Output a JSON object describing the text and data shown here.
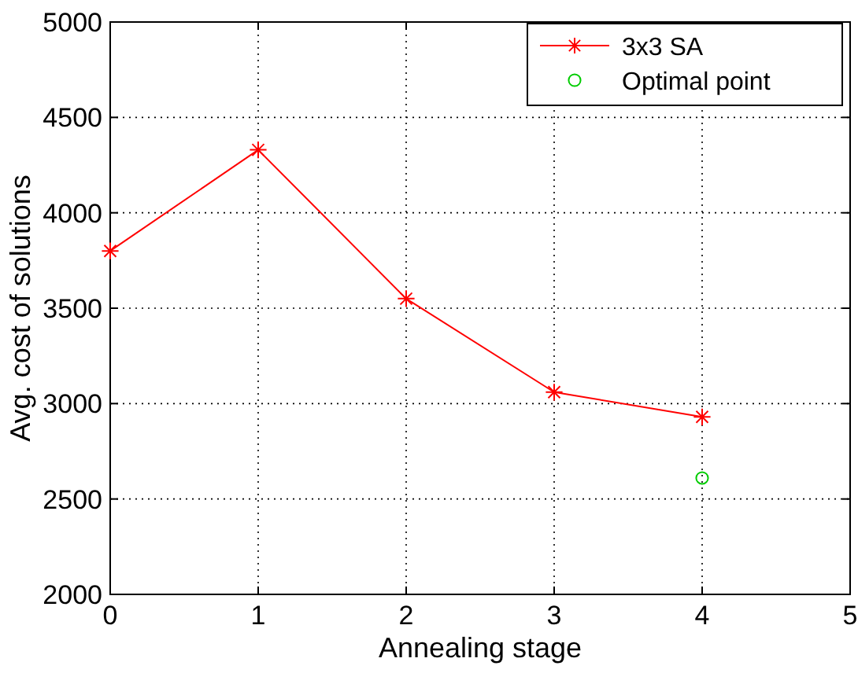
{
  "chart_data": {
    "type": "line",
    "xlabel": "Annealing stage",
    "ylabel": "Avg. cost of solutions",
    "xlim": [
      0,
      5
    ],
    "xticks": [
      0,
      1,
      2,
      3,
      4,
      5
    ],
    "ylim": [
      2000,
      5000
    ],
    "yticks": [
      2000,
      2500,
      3000,
      3500,
      4000,
      4500,
      5000
    ],
    "grid": true,
    "legend": "top right",
    "series": [
      {
        "name": "3x3 SA",
        "type": "line",
        "color": "#ff0000",
        "marker": "cross",
        "line_style": "solid",
        "x": [
          0,
          1,
          2,
          3,
          4
        ],
        "values": [
          3800,
          4330,
          3550,
          3060,
          2930
        ]
      },
      {
        "name": "Optimal point",
        "type": "scatter",
        "color": "#00cc00",
        "marker": "circle",
        "x": [
          4
        ],
        "values": [
          2610
        ]
      }
    ]
  }
}
